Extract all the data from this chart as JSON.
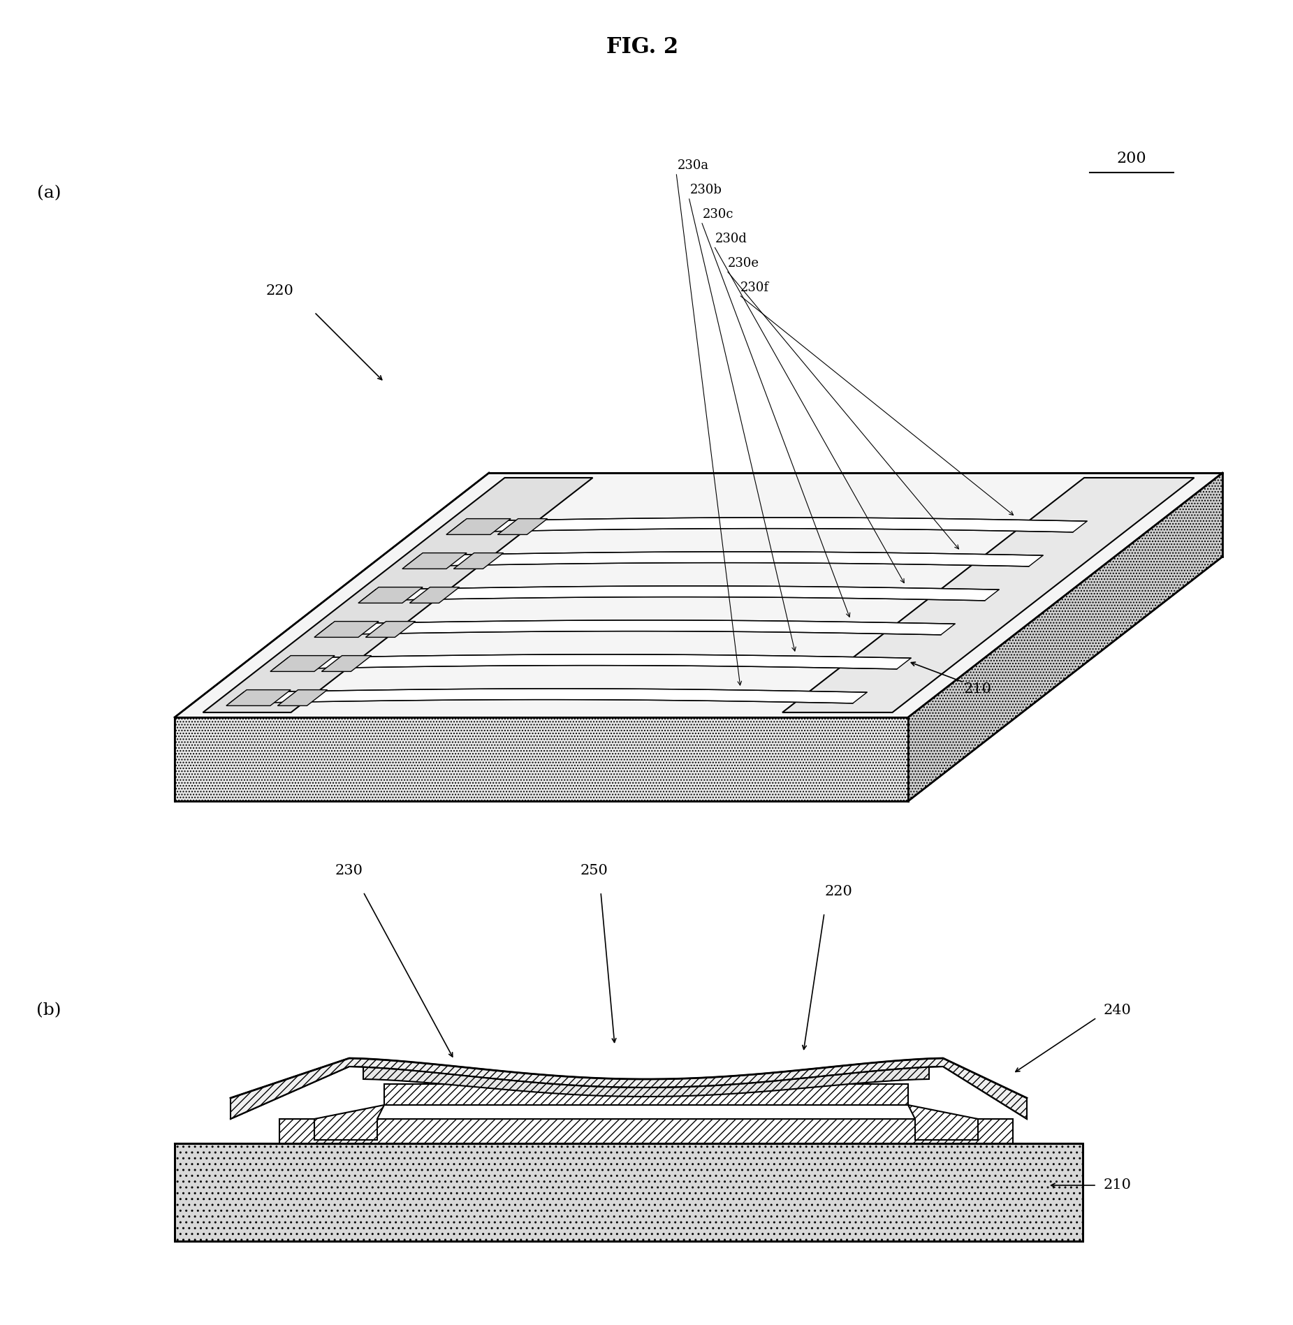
{
  "title": "FIG. 2",
  "title_fontsize": 22,
  "title_fontweight": "bold",
  "bg_color": "#ffffff",
  "label_a": "(a)",
  "label_b": "(b)",
  "ref_200": "200",
  "ref_210_a": "210",
  "ref_220_a": "220",
  "ref_230a": "230a",
  "ref_230b": "230b",
  "ref_230c": "230c",
  "ref_230d": "230d",
  "ref_230e": "230e",
  "ref_230f": "230f",
  "ref_230_b": "230",
  "ref_250": "250",
  "ref_220_b": "220",
  "ref_240": "240",
  "ref_210_b": "210",
  "line_color": "#000000",
  "hatch_color": "#000000",
  "fill_light": "#f0f0f0",
  "fill_medium": "#d0d0d0",
  "fill_dark": "#808080"
}
